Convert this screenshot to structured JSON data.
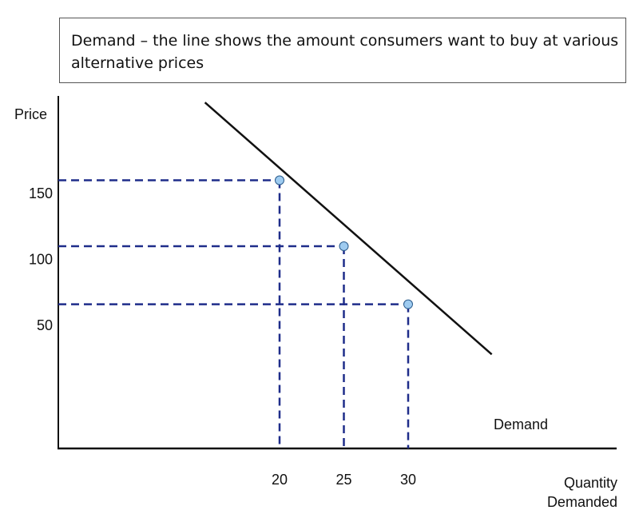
{
  "caption": "Demand – the line shows the amount consumers want to buy at various alternative prices",
  "chart_data": {
    "type": "line",
    "title": "",
    "ylabel": "Price",
    "xlabel_lines": [
      "Quantity",
      "Demanded"
    ],
    "x_ticks": [
      20,
      25,
      30
    ],
    "y_ticks": [
      50,
      100,
      150
    ],
    "series": [
      {
        "name": "Demand",
        "x": [
          20,
          25,
          30
        ],
        "y": [
          160,
          110,
          66
        ]
      }
    ],
    "line_extent": {
      "x": [
        14.2,
        36.5
      ],
      "y": [
        219,
        28
      ]
    },
    "colors": {
      "line": "#111111",
      "guides": "#1f2d8a",
      "points": "#9ecbf0",
      "point_stroke": "#2a5b8c"
    }
  }
}
